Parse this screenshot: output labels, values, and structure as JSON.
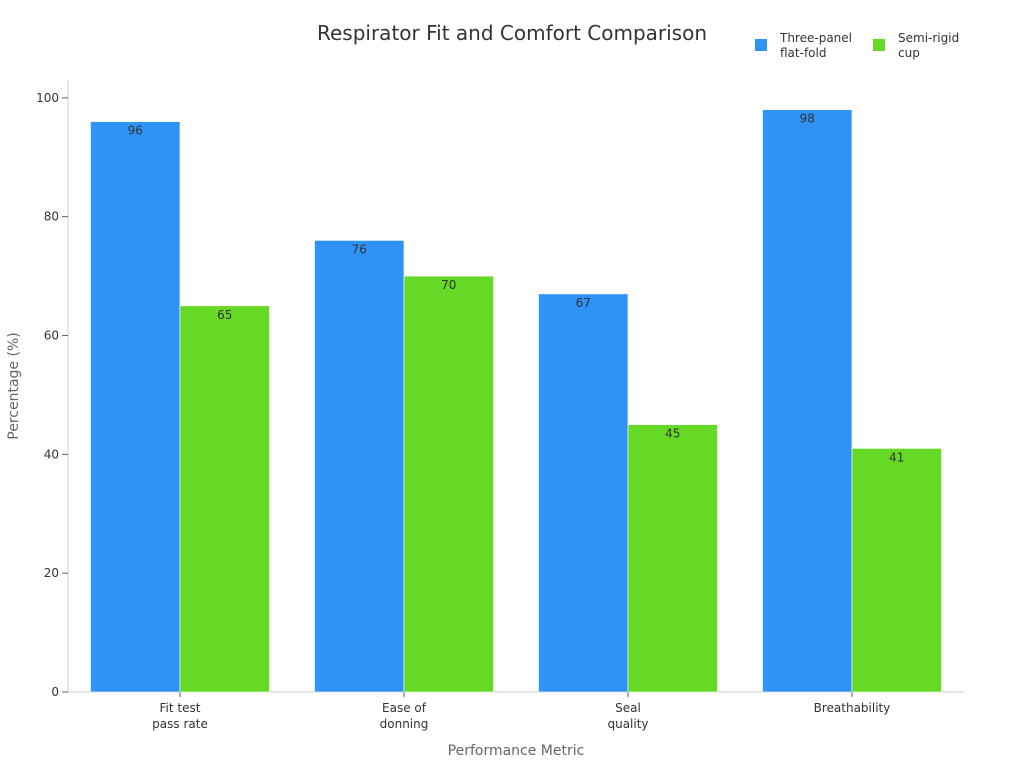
{
  "chart_data": {
    "type": "bar",
    "title": "Respirator Fit and Comfort Comparison",
    "xlabel": "Performance Metric",
    "ylabel": "Percentage (%)",
    "categories": [
      [
        "Fit test",
        "pass rate"
      ],
      [
        "Ease of",
        "donning"
      ],
      [
        "Seal",
        "quality"
      ],
      [
        "Breathability"
      ]
    ],
    "series": [
      {
        "name": [
          "Three-panel",
          "flat-fold"
        ],
        "values": [
          96,
          76,
          67,
          98
        ],
        "color": "#3092f5"
      },
      {
        "name": [
          "Semi-rigid",
          "cup"
        ],
        "values": [
          65,
          70,
          45,
          41
        ],
        "color": "#66d926"
      }
    ],
    "ylim": [
      0,
      103
    ],
    "yticks": [
      0,
      20,
      40,
      60,
      80,
      100
    ],
    "grid": false,
    "legend": "top-right"
  }
}
